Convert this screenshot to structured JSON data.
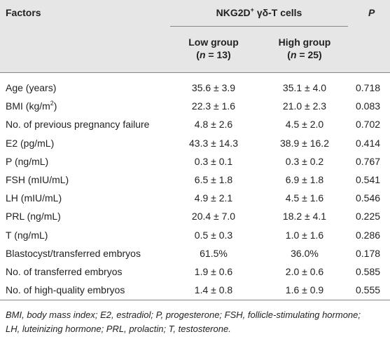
{
  "header": {
    "factors": "Factors",
    "group": [
      "NKG2D",
      "+",
      " γδ-T cells"
    ],
    "p": "P",
    "low": [
      "Low group",
      "(",
      "n",
      " = 13)"
    ],
    "high": [
      "High group",
      "(",
      "n",
      " = 25)"
    ]
  },
  "rows": [
    [
      "Age (years)",
      "35.6 ± 3.9",
      "35.1 ± 4.0",
      "0.718"
    ],
    [
      [
        "BMI (kg/m",
        "2",
        ")"
      ],
      "22.3 ± 1.6",
      "21.0 ± 2.3",
      "0.083"
    ],
    [
      "No. of previous pregnancy failure",
      "4.8 ± 2.6",
      "4.5 ± 2.0",
      "0.702"
    ],
    [
      "E2 (pg/mL)",
      "43.3 ± 14.3",
      "38.9 ± 16.2",
      "0.414"
    ],
    [
      "P (ng/mL)",
      "0.3 ± 0.1",
      "0.3 ± 0.2",
      "0.767"
    ],
    [
      "FSH (mIU/mL)",
      "6.5 ± 1.8",
      "6.9 ± 1.8",
      "0.541"
    ],
    [
      "LH (mIU/mL)",
      "4.9 ± 2.1",
      "4.5 ± 1.6",
      "0.546"
    ],
    [
      "PRL (ng/mL)",
      "20.4 ± 7.0",
      "18.2 ± 4.1",
      "0.225"
    ],
    [
      "T (ng/mL)",
      "0.5 ± 0.3",
      "1.0 ± 1.6",
      "0.286"
    ],
    [
      "Blastocyst/transferred embryos",
      "61.5%",
      "36.0%",
      "0.178"
    ],
    [
      "No. of transferred embryos",
      "1.9 ± 0.6",
      "2.0 ± 0.6",
      "0.585"
    ],
    [
      "No. of high-quality embryos",
      "1.4 ± 0.8",
      "1.6 ± 0.9",
      "0.555"
    ]
  ],
  "footnote": [
    "BMI, body mass index; E2, estradiol; P, progesterone; FSH, follicle-stimulating hormone;",
    "LH, luteinizing hormone; PRL, prolactin; T, testosterone."
  ]
}
